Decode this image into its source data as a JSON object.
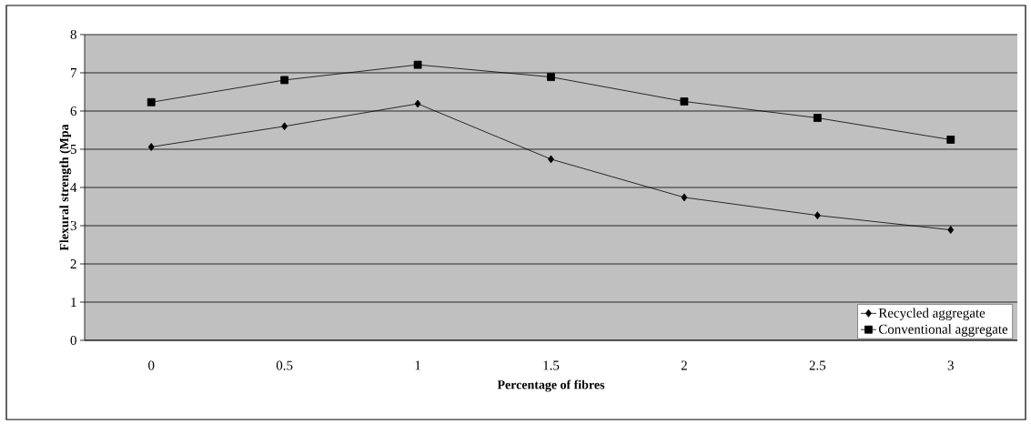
{
  "chart_data": {
    "type": "line",
    "xlabel": "Percentage of fibres",
    "ylabel": "Flexural strength (Mpa",
    "categories": [
      "0",
      "0.5",
      "1",
      "1.5",
      "2",
      "2.5",
      "3"
    ],
    "series": [
      {
        "name": "Recycled aggregate",
        "color": "#000000",
        "marker": "diamond",
        "values": [
          5.06,
          5.6,
          6.19,
          4.74,
          3.74,
          3.27,
          2.89
        ]
      },
      {
        "name": "Conventional aggregate",
        "color": "#000000",
        "marker": "square",
        "values": [
          6.23,
          6.81,
          7.21,
          6.89,
          6.25,
          5.82,
          5.25
        ]
      }
    ],
    "ylim": [
      0,
      8
    ],
    "yticks": [
      0,
      1,
      2,
      3,
      4,
      5,
      6,
      7,
      8
    ],
    "grid": "y",
    "legend": "bottom right",
    "line_style": "solid"
  }
}
